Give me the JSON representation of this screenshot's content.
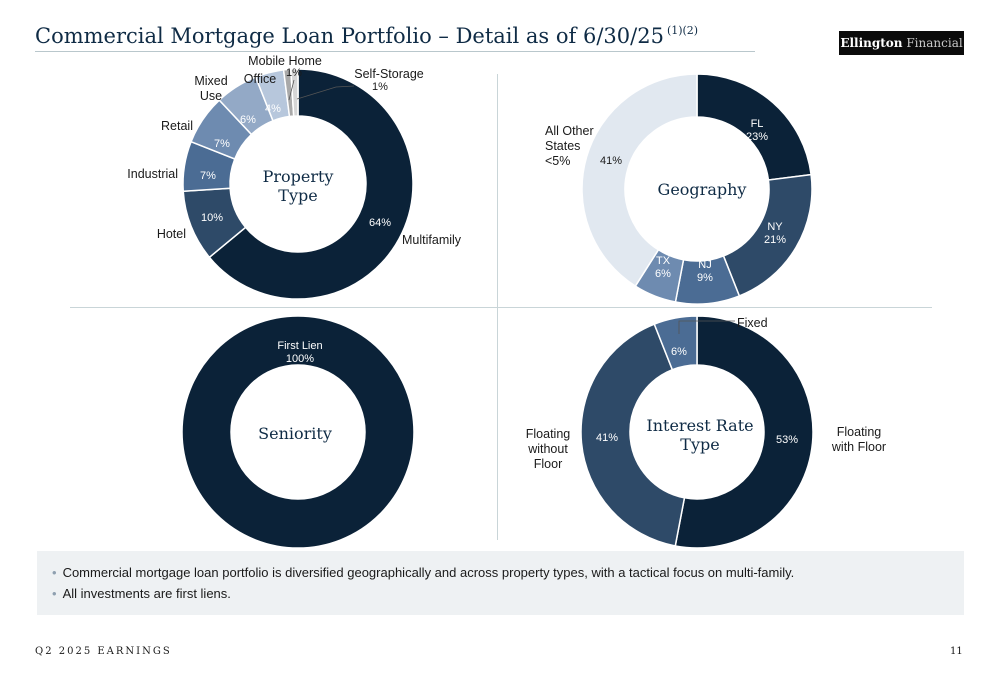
{
  "header": {
    "title": "Commercial Mortgage Loan Portfolio – Detail as of 6/30/25",
    "footnote_refs": "(1)(2)",
    "brand_main": "Ellington",
    "brand_sub": "Financial"
  },
  "colors": {
    "navy": "#0b2238",
    "slate": "#2e4a68",
    "steel": "#4b6c94",
    "mid_blue": "#6e8bb0",
    "light_blue": "#93a9c6",
    "pale_blue": "#b7c7dc",
    "pale_grey": "#e1e8f0",
    "grey": "#a9a9a9"
  },
  "chart_data": [
    {
      "type": "pie",
      "title": "Property Type",
      "slices": [
        {
          "label": "Multifamily",
          "value": 64,
          "value_label": "64%"
        },
        {
          "label": "Hotel",
          "value": 10,
          "value_label": "10%"
        },
        {
          "label": "Industrial",
          "value": 7,
          "value_label": "7%"
        },
        {
          "label": "Retail",
          "value": 7,
          "value_label": "7%"
        },
        {
          "label": "Mixed Use",
          "value": 6,
          "value_label": "6%"
        },
        {
          "label": "Office",
          "value": 4,
          "value_label": "4%"
        },
        {
          "label": "Mobile Home",
          "value": 1,
          "value_label": "1%"
        },
        {
          "label": "Self-Storage",
          "value": 1,
          "value_label": "1%"
        }
      ]
    },
    {
      "type": "pie",
      "title": "Geography",
      "slices": [
        {
          "label": "FL",
          "value": 23,
          "value_label": "23%"
        },
        {
          "label": "NY",
          "value": 21,
          "value_label": "21%"
        },
        {
          "label": "NJ",
          "value": 9,
          "value_label": "9%"
        },
        {
          "label": "TX",
          "value": 6,
          "value_label": "6%"
        },
        {
          "label": "All Other States <5%",
          "value": 41,
          "value_label": "41%"
        }
      ]
    },
    {
      "type": "pie",
      "title": "Seniority",
      "slices": [
        {
          "label": "First Lien",
          "value": 100,
          "value_label": "100%"
        }
      ]
    },
    {
      "type": "pie",
      "title": "Interest Rate Type",
      "slices": [
        {
          "label": "Floating with Floor",
          "value": 53,
          "value_label": "53%"
        },
        {
          "label": "Floating without Floor",
          "value": 41,
          "value_label": "41%"
        },
        {
          "label": "Fixed",
          "value": 6,
          "value_label": "6%"
        }
      ]
    }
  ],
  "notes": [
    "Commercial mortgage loan portfolio is diversified geographically and across property types, with a tactical focus on multi-family.",
    "All investments are first liens."
  ],
  "footer": {
    "left": "Q2 2025 EARNINGS",
    "page": "11"
  }
}
